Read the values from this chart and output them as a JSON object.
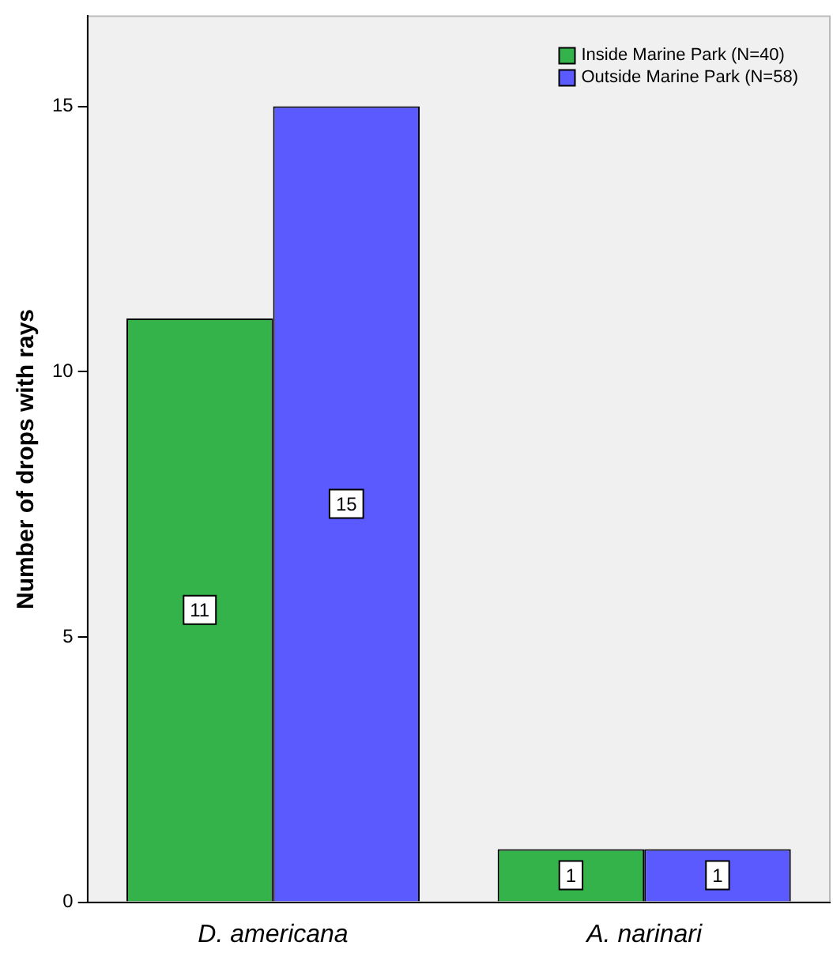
{
  "chart_data": {
    "type": "bar",
    "ylabel": "Number of drops with rays",
    "categories": [
      "D. americana",
      "A. narinari"
    ],
    "series": [
      {
        "name": "Inside Marine Park (N=40)",
        "color": "#33b34a",
        "values": [
          11,
          1
        ]
      },
      {
        "name": "Outside Marine Park (N=58)",
        "color": "#5a5aff",
        "values": [
          15,
          1
        ]
      }
    ],
    "ylim": [
      0,
      16.7
    ],
    "yticks": [
      0,
      5,
      10,
      15
    ],
    "grid": false,
    "legend": "top right",
    "data_labels": true
  }
}
